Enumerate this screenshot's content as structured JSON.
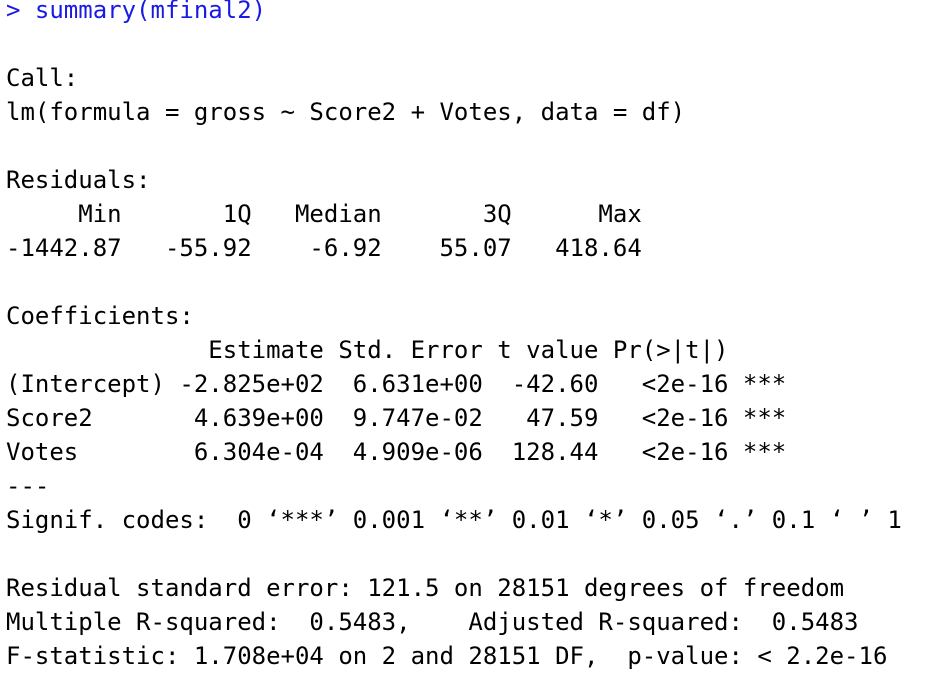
{
  "console": {
    "prompt": "> ",
    "command": "summary(mfinal2)",
    "text_color": "#000000",
    "command_color": "#1a1ae6",
    "lines": [
      "Call:",
      "lm(formula = gross ~ Score2 + Votes, data = df)",
      "Residuals:",
      "     Min       1Q   Median       3Q      Max ",
      "-1442.87   -55.92    -6.92    55.07   418.64 ",
      "Coefficients:",
      "              Estimate Std. Error t value Pr(>|t|)    ",
      "(Intercept) -2.825e+02  6.631e+00  -42.60   <2e-16 ***",
      "Score2       4.639e+00  9.747e-02   47.59   <2e-16 ***",
      "Votes        6.304e-04  4.909e-06  128.44   <2e-16 ***",
      "---",
      "Signif. codes:  0 ‘***’ 0.001 ‘**’ 0.01 ‘*’ 0.05 ‘.’ 0.1 ‘ ’ 1",
      "Residual standard error: 121.5 on 28151 degrees of freedom",
      "Multiple R-squared:  0.5483,\tAdjusted R-squared:  0.5483 ",
      "F-statistic: 1.708e+04 on 2 and 28151 DF,  p-value: < 2.2e-16"
    ]
  }
}
